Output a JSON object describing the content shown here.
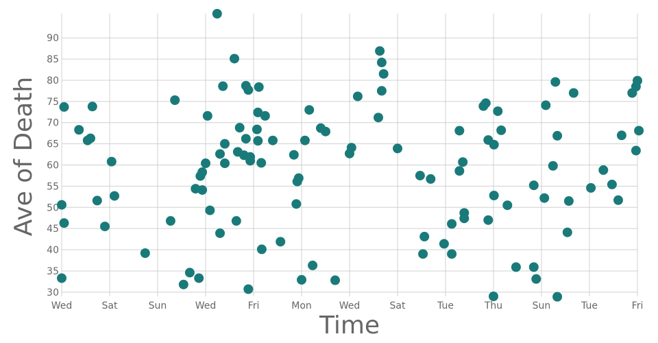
{
  "chart_data": {
    "type": "scatter",
    "xlabel": "Time",
    "ylabel": "Ave of Death",
    "grid": true,
    "point_color": "#1a7a7a",
    "xlim": [
      0,
      12
    ],
    "ylim": [
      29,
      95.7
    ],
    "x_ticks": [
      {
        "value": 0,
        "label": "Wed"
      },
      {
        "value": 1,
        "label": "Sat"
      },
      {
        "value": 2,
        "label": "Sun"
      },
      {
        "value": 3,
        "label": "Wed"
      },
      {
        "value": 4,
        "label": "Fri"
      },
      {
        "value": 5,
        "label": "Mon"
      },
      {
        "value": 6,
        "label": "Wed"
      },
      {
        "value": 7,
        "label": "Sat"
      },
      {
        "value": 8,
        "label": "Tue"
      },
      {
        "value": 9,
        "label": "Thu"
      },
      {
        "value": 10,
        "label": "Sun"
      },
      {
        "value": 11,
        "label": "Tue"
      },
      {
        "value": 12,
        "label": "Fri"
      }
    ],
    "y_ticks": [
      30,
      35,
      40,
      45,
      50,
      55,
      60,
      65,
      70,
      75,
      80,
      85,
      90
    ],
    "points": [
      [
        0.0,
        50.6
      ],
      [
        0.05,
        46.3
      ],
      [
        0.05,
        73.7
      ],
      [
        0.0,
        33.3
      ],
      [
        0.36,
        68.3
      ],
      [
        0.54,
        65.8
      ],
      [
        0.6,
        66.3
      ],
      [
        0.64,
        73.8
      ],
      [
        0.74,
        51.6
      ],
      [
        0.9,
        45.5
      ],
      [
        1.04,
        60.8
      ],
      [
        1.1,
        52.7
      ],
      [
        1.74,
        39.2
      ],
      [
        2.27,
        46.8
      ],
      [
        2.36,
        75.3
      ],
      [
        2.54,
        31.8
      ],
      [
        2.67,
        34.6
      ],
      [
        2.79,
        54.4
      ],
      [
        2.86,
        33.3
      ],
      [
        2.89,
        57.4
      ],
      [
        2.93,
        58.3
      ],
      [
        2.93,
        54.1
      ],
      [
        3.0,
        60.4
      ],
      [
        3.04,
        71.6
      ],
      [
        3.09,
        49.3
      ],
      [
        3.24,
        95.7
      ],
      [
        3.3,
        62.6
      ],
      [
        3.3,
        43.9
      ],
      [
        3.36,
        78.6
      ],
      [
        3.4,
        60.4
      ],
      [
        3.4,
        65.0
      ],
      [
        3.6,
        85.1
      ],
      [
        3.64,
        46.8
      ],
      [
        3.67,
        63.1
      ],
      [
        3.71,
        68.8
      ],
      [
        3.8,
        62.3
      ],
      [
        3.84,
        66.2
      ],
      [
        3.84,
        78.7
      ],
      [
        3.89,
        77.7
      ],
      [
        3.89,
        30.7
      ],
      [
        3.93,
        61.0
      ],
      [
        3.93,
        61.9
      ],
      [
        4.07,
        68.4
      ],
      [
        4.09,
        72.4
      ],
      [
        4.09,
        65.7
      ],
      [
        4.11,
        78.4
      ],
      [
        4.16,
        60.5
      ],
      [
        4.17,
        40.1
      ],
      [
        4.24,
        71.6
      ],
      [
        4.4,
        65.8
      ],
      [
        4.56,
        41.9
      ],
      [
        4.84,
        62.4
      ],
      [
        4.89,
        50.8
      ],
      [
        4.91,
        56.1
      ],
      [
        4.94,
        56.9
      ],
      [
        5.0,
        32.9
      ],
      [
        5.07,
        65.8
      ],
      [
        5.16,
        73.0
      ],
      [
        5.23,
        36.3
      ],
      [
        5.4,
        68.7
      ],
      [
        5.5,
        67.9
      ],
      [
        5.7,
        32.8
      ],
      [
        6.0,
        62.7
      ],
      [
        6.04,
        64.1
      ],
      [
        6.17,
        76.2
      ],
      [
        6.6,
        71.2
      ],
      [
        6.63,
        86.9
      ],
      [
        6.67,
        77.5
      ],
      [
        6.67,
        84.2
      ],
      [
        6.71,
        81.5
      ],
      [
        7.0,
        63.9
      ],
      [
        7.47,
        57.5
      ],
      [
        7.53,
        39.0
      ],
      [
        7.56,
        43.1
      ],
      [
        7.69,
        56.7
      ],
      [
        7.97,
        41.4
      ],
      [
        8.13,
        39.0
      ],
      [
        8.13,
        46.1
      ],
      [
        8.29,
        68.1
      ],
      [
        8.29,
        58.6
      ],
      [
        8.36,
        60.7
      ],
      [
        8.39,
        48.7
      ],
      [
        8.39,
        47.4
      ],
      [
        8.79,
        73.9
      ],
      [
        8.84,
        74.6
      ],
      [
        8.89,
        65.9
      ],
      [
        8.89,
        47.0
      ],
      [
        9.0,
        29.0
      ],
      [
        9.01,
        52.8
      ],
      [
        9.01,
        64.8
      ],
      [
        9.09,
        72.7
      ],
      [
        9.16,
        68.2
      ],
      [
        9.29,
        50.5
      ],
      [
        9.47,
        35.9
      ],
      [
        9.84,
        55.2
      ],
      [
        9.84,
        35.9
      ],
      [
        9.89,
        33.1
      ],
      [
        10.06,
        52.2
      ],
      [
        10.09,
        74.1
      ],
      [
        10.24,
        59.8
      ],
      [
        10.29,
        79.6
      ],
      [
        10.33,
        66.9
      ],
      [
        10.33,
        28.9
      ],
      [
        10.54,
        44.1
      ],
      [
        10.57,
        51.5
      ],
      [
        10.67,
        77.0
      ],
      [
        11.03,
        54.6
      ],
      [
        11.29,
        58.8
      ],
      [
        11.47,
        55.4
      ],
      [
        11.6,
        51.7
      ],
      [
        11.67,
        67.0
      ],
      [
        11.89,
        77.0
      ],
      [
        11.97,
        63.4
      ],
      [
        11.97,
        78.5
      ],
      [
        12.0,
        79.9
      ],
      [
        12.03,
        68.1
      ]
    ]
  }
}
